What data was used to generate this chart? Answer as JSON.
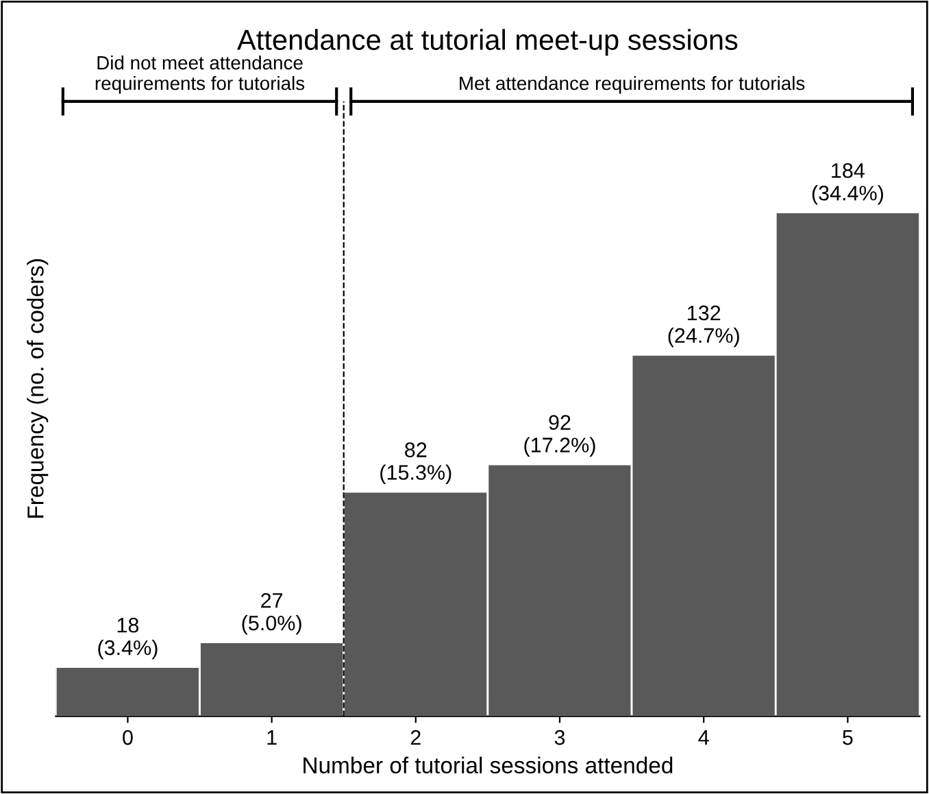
{
  "chart_data": {
    "type": "bar",
    "title": "Attendance at tutorial meet-up sessions",
    "xlabel": "Number of tutorial sessions attended",
    "ylabel": "Frequency (no. of coders)",
    "categories": [
      "0",
      "1",
      "2",
      "3",
      "4",
      "5"
    ],
    "values": [
      18,
      27,
      82,
      92,
      132,
      184
    ],
    "value_labels": [
      "18\n(3.4%)",
      "27\n(5.0%)",
      "82\n(15.3%)",
      "92\n(17.2%)",
      "132\n(24.7%)",
      "184\n(34.4%)"
    ],
    "color": "#595959",
    "annotations": [
      "Did not meet attendance\nrequirements for tutorials",
      "Met attendance requirements for tutorials"
    ]
  }
}
